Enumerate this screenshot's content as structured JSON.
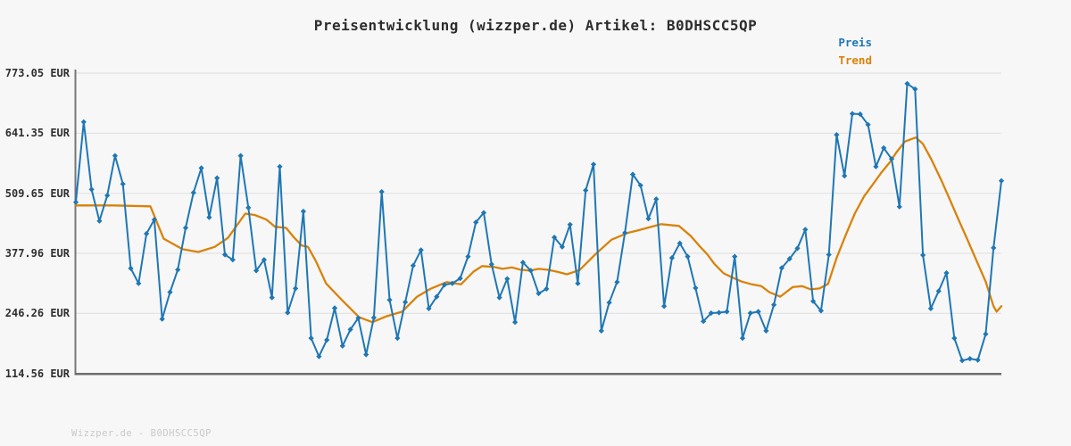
{
  "header": {
    "title": "Preisentwicklung (wizzper.de) Artikel: B0DHSCC5QP"
  },
  "legend": [
    {
      "label": "Preis",
      "color": "#1f77b4"
    },
    {
      "label": "Trend",
      "color": "#d9820a"
    }
  ],
  "footer": {
    "text": "Wizzper.de - B0DHSCC5QP"
  },
  "chart_data": {
    "type": "line",
    "title": "Preisentwicklung (wizzper.de) Artikel: B0DHSCC5QP",
    "currency": "EUR",
    "grid": "horizontal",
    "legend_position": "top-right",
    "ylim": [
      114.56,
      773.05
    ],
    "y_ticks": [
      {
        "label": "773.05 EUR",
        "value": 773.05
      },
      {
        "label": "641.35 EUR",
        "value": 641.35
      },
      {
        "label": "509.65 EUR",
        "value": 509.65
      },
      {
        "label": "377.96 EUR",
        "value": 377.96
      },
      {
        "label": "246.26 EUR",
        "value": 246.26
      },
      {
        "label": "114.56 EUR",
        "value": 114.56
      }
    ],
    "x_tick_labels": [],
    "series": [
      {
        "name": "Preis",
        "color": "#1f77b4",
        "marker": "diamond",
        "values": [
          490,
          666,
          518,
          449,
          505,
          592,
          530,
          345,
          312,
          421,
          452,
          234,
          293,
          342,
          434,
          511,
          565,
          457,
          543,
          375,
          364,
          592,
          478,
          340,
          364,
          281,
          568,
          248,
          301,
          470,
          192,
          152,
          188,
          258,
          175,
          211,
          236,
          156,
          237,
          513,
          276,
          192,
          271,
          351,
          385,
          257,
          283,
          309,
          312,
          323,
          371,
          446,
          467,
          354,
          281,
          322,
          227,
          358,
          340,
          290,
          300,
          413,
          392,
          441,
          312,
          516,
          573,
          208,
          270,
          315,
          423,
          551,
          527,
          454,
          497,
          262,
          368,
          400,
          371,
          302,
          229,
          247,
          248,
          250,
          371,
          192,
          247,
          250,
          208,
          265,
          346,
          366,
          389,
          430,
          273,
          252,
          375,
          638,
          548,
          684,
          683,
          660,
          568,
          609,
          585,
          480,
          750,
          738,
          374,
          257,
          295,
          335,
          192,
          143,
          147,
          144,
          201,
          390,
          537
        ]
      },
      {
        "name": "Trend",
        "color": "#d9820a",
        "marker": "none",
        "points": [
          [
            0,
            483
          ],
          [
            4.6,
            483
          ],
          [
            9.5,
            481
          ],
          [
            11.2,
            410
          ],
          [
            13.6,
            387
          ],
          [
            15.6,
            381
          ],
          [
            17.7,
            392
          ],
          [
            19.4,
            412
          ],
          [
            21.6,
            465
          ],
          [
            22.8,
            462
          ],
          [
            24.3,
            452
          ],
          [
            25.4,
            436
          ],
          [
            26.8,
            434
          ],
          [
            27.8,
            413
          ],
          [
            28.8,
            395
          ],
          [
            29.6,
            392
          ],
          [
            30.6,
            361
          ],
          [
            31.9,
            312
          ],
          [
            33.9,
            276
          ],
          [
            36.1,
            238
          ],
          [
            37.8,
            227
          ],
          [
            39.6,
            240
          ],
          [
            41.6,
            250
          ],
          [
            43.5,
            283
          ],
          [
            45.3,
            301
          ],
          [
            47.3,
            315
          ],
          [
            49.1,
            310
          ],
          [
            50.7,
            338
          ],
          [
            51.8,
            350
          ],
          [
            53.3,
            348
          ],
          [
            54.4,
            344
          ],
          [
            55.6,
            347
          ],
          [
            56.7,
            342
          ],
          [
            57.9,
            340
          ],
          [
            59,
            344
          ],
          [
            60.1,
            342
          ],
          [
            61.3,
            338
          ],
          [
            62.6,
            332
          ],
          [
            64.2,
            341
          ],
          [
            66.3,
            377
          ],
          [
            68.3,
            408
          ],
          [
            70.4,
            423
          ],
          [
            71.4,
            427
          ],
          [
            73.1,
            435
          ],
          [
            74.6,
            442
          ],
          [
            76.9,
            438
          ],
          [
            78.4,
            416
          ],
          [
            79.5,
            394
          ],
          [
            80.5,
            376
          ],
          [
            81.4,
            355
          ],
          [
            82.6,
            334
          ],
          [
            83.7,
            325
          ],
          [
            84.9,
            316
          ],
          [
            86.2,
            310
          ],
          [
            87.4,
            306
          ],
          [
            88.4,
            293
          ],
          [
            89.8,
            283
          ],
          [
            91.4,
            304
          ],
          [
            92.6,
            306
          ],
          [
            93.7,
            299
          ],
          [
            94.8,
            301
          ],
          [
            95.9,
            311
          ],
          [
            97,
            368
          ],
          [
            98.2,
            420
          ],
          [
            99.3,
            465
          ],
          [
            100.5,
            503
          ],
          [
            101.6,
            529
          ],
          [
            102.7,
            555
          ],
          [
            103.8,
            578
          ],
          [
            104.6,
            599
          ],
          [
            105.7,
            623
          ],
          [
            107.1,
            632
          ],
          [
            108,
            618
          ],
          [
            109.1,
            583
          ],
          [
            110.3,
            540
          ],
          [
            111.4,
            497
          ],
          [
            112.5,
            453
          ],
          [
            113.7,
            407
          ],
          [
            114.8,
            363
          ],
          [
            116,
            316
          ],
          [
            117,
            262
          ],
          [
            117.4,
            250
          ],
          [
            118,
            262
          ]
        ]
      }
    ]
  }
}
